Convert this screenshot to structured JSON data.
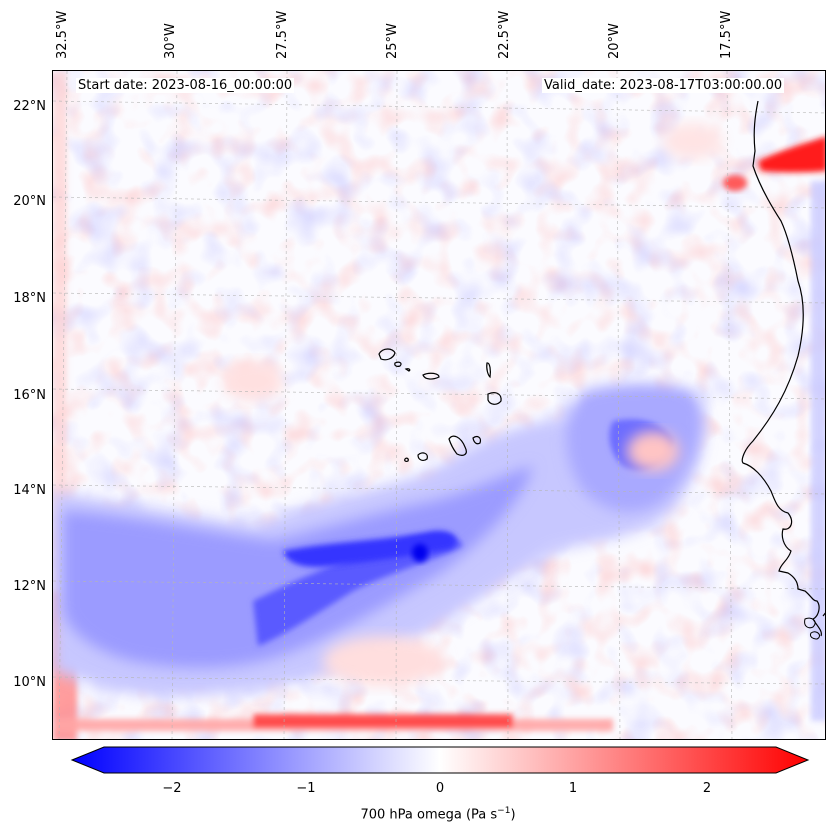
{
  "map": {
    "header": {
      "start_date": "Start date: 2023-08-16_00:00:00",
      "valid_date": "Valid_date: 2023-08-17T03:00:00.00"
    },
    "longitude_labels": [
      "32.5°W",
      "30°W",
      "27.5°W",
      "25°W",
      "22.5°W",
      "20°W",
      "17.5°W"
    ],
    "latitude_labels": [
      "22°N",
      "20°N",
      "18°N",
      "16°N",
      "14°N",
      "12°N",
      "10°N"
    ],
    "features": {
      "coastline": "West Africa coast (Mauritania, Senegal, Guinea-Bissau)",
      "islands": "Cape Verde islands",
      "gridlines": "dashed"
    },
    "colors": {
      "negative": "#0000ff",
      "neutral": "#ffffff",
      "positive": "#ff0000",
      "coast": "#000000"
    },
    "colorbar": {
      "ticks": [
        "−2",
        "−1",
        "0",
        "1",
        "2"
      ],
      "label_main": "700 hPa omega (Pa s",
      "label_exp": "−1",
      "label_end": ")",
      "range": [
        -2.7,
        2.7
      ],
      "cmap": "bwr"
    }
  }
}
